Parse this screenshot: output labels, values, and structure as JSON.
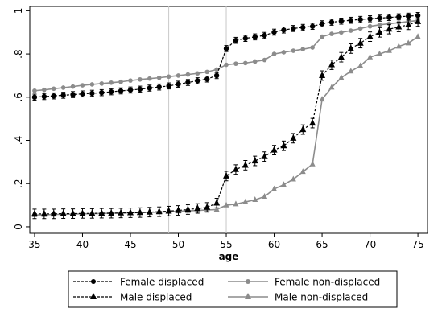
{
  "chart_data": {
    "type": "line",
    "xlabel": "age",
    "ylabel": "",
    "xlim": [
      34.5,
      76
    ],
    "ylim": [
      -0.03,
      1.02
    ],
    "xticks": [
      35,
      40,
      45,
      50,
      55,
      60,
      65,
      70,
      75
    ],
    "xtick_labels": [
      "35",
      "40",
      "45",
      "50",
      "55",
      "60",
      "65",
      "70",
      "75"
    ],
    "yticks": [
      0,
      0.2,
      0.4,
      0.6,
      0.8,
      1
    ],
    "ytick_labels": [
      "0",
      ".2",
      ".4",
      ".6",
      ".8",
      "1"
    ],
    "reference_lines_x": [
      49,
      55
    ],
    "grid": false,
    "legend_position": "bottom",
    "series": [
      {
        "name": "Female displaced",
        "color": "#000000",
        "line_style": "dashed",
        "marker": "circle",
        "error_bars": true,
        "x": [
          35,
          36,
          37,
          38,
          39,
          40,
          41,
          42,
          43,
          44,
          45,
          46,
          47,
          48,
          49,
          50,
          51,
          52,
          53,
          54,
          55,
          56,
          57,
          58,
          59,
          60,
          61,
          62,
          63,
          64,
          65,
          66,
          67,
          68,
          69,
          70,
          71,
          72,
          73,
          74,
          75
        ],
        "y": [
          0.6,
          0.603,
          0.606,
          0.609,
          0.612,
          0.615,
          0.618,
          0.621,
          0.625,
          0.629,
          0.633,
          0.637,
          0.642,
          0.647,
          0.652,
          0.66,
          0.668,
          0.676,
          0.684,
          0.7,
          0.825,
          0.863,
          0.872,
          0.879,
          0.886,
          0.901,
          0.911,
          0.918,
          0.923,
          0.928,
          0.94,
          0.947,
          0.952,
          0.956,
          0.96,
          0.963,
          0.966,
          0.969,
          0.972,
          0.975,
          0.978
        ]
      },
      {
        "name": "Female non-displaced",
        "color": "#8c8c8c",
        "line_style": "solid",
        "marker": "circle",
        "error_bars": false,
        "x": [
          35,
          36,
          37,
          38,
          39,
          40,
          41,
          42,
          43,
          44,
          45,
          46,
          47,
          48,
          49,
          50,
          51,
          52,
          53,
          54,
          55,
          56,
          57,
          58,
          59,
          60,
          61,
          62,
          63,
          64,
          65,
          66,
          67,
          68,
          69,
          70,
          71,
          72,
          73,
          74,
          75
        ],
        "y": [
          0.63,
          0.634,
          0.639,
          0.644,
          0.649,
          0.655,
          0.659,
          0.663,
          0.667,
          0.671,
          0.677,
          0.682,
          0.686,
          0.69,
          0.695,
          0.7,
          0.705,
          0.71,
          0.717,
          0.728,
          0.75,
          0.755,
          0.758,
          0.765,
          0.772,
          0.8,
          0.808,
          0.815,
          0.822,
          0.83,
          0.88,
          0.893,
          0.9,
          0.908,
          0.918,
          0.928,
          0.935,
          0.94,
          0.945,
          0.95,
          0.955
        ]
      },
      {
        "name": "Male displaced",
        "color": "#000000",
        "line_style": "dashed",
        "marker": "triangle",
        "error_bars": true,
        "x": [
          35,
          36,
          37,
          38,
          39,
          40,
          41,
          42,
          43,
          44,
          45,
          46,
          47,
          48,
          49,
          50,
          51,
          52,
          53,
          54,
          55,
          56,
          57,
          58,
          59,
          60,
          61,
          62,
          63,
          64,
          65,
          66,
          67,
          68,
          69,
          70,
          71,
          72,
          73,
          74,
          75
        ],
        "y": [
          0.06,
          0.06,
          0.06,
          0.061,
          0.061,
          0.062,
          0.062,
          0.063,
          0.063,
          0.064,
          0.065,
          0.066,
          0.068,
          0.07,
          0.073,
          0.076,
          0.08,
          0.085,
          0.09,
          0.11,
          0.235,
          0.265,
          0.285,
          0.305,
          0.325,
          0.355,
          0.375,
          0.41,
          0.45,
          0.48,
          0.7,
          0.75,
          0.785,
          0.825,
          0.85,
          0.88,
          0.9,
          0.915,
          0.925,
          0.935,
          0.95
        ]
      },
      {
        "name": "Male non-displaced",
        "color": "#8c8c8c",
        "line_style": "solid",
        "marker": "triangle",
        "error_bars": false,
        "x": [
          35,
          36,
          37,
          38,
          39,
          40,
          41,
          42,
          43,
          44,
          45,
          46,
          47,
          48,
          49,
          50,
          51,
          52,
          53,
          54,
          55,
          56,
          57,
          58,
          59,
          60,
          61,
          62,
          63,
          64,
          65,
          66,
          67,
          68,
          69,
          70,
          71,
          72,
          73,
          74,
          75
        ],
        "y": [
          0.055,
          0.056,
          0.057,
          0.058,
          0.059,
          0.06,
          0.061,
          0.062,
          0.063,
          0.064,
          0.065,
          0.066,
          0.067,
          0.068,
          0.07,
          0.072,
          0.074,
          0.076,
          0.078,
          0.08,
          0.1,
          0.105,
          0.115,
          0.125,
          0.14,
          0.175,
          0.195,
          0.22,
          0.255,
          0.29,
          0.59,
          0.645,
          0.69,
          0.72,
          0.745,
          0.785,
          0.8,
          0.815,
          0.835,
          0.85,
          0.88
        ]
      }
    ],
    "legend": [
      {
        "label": "Female displaced"
      },
      {
        "label": "Female non-displaced"
      },
      {
        "label": "Male displaced"
      },
      {
        "label": "Male non-displaced"
      }
    ]
  }
}
